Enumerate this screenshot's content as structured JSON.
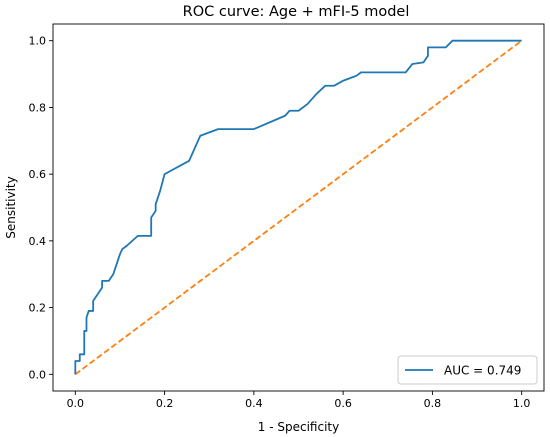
{
  "chart_data": {
    "type": "line",
    "title": "ROC curve: Age + mFI-5 model",
    "xlabel": "1 - Specificity",
    "ylabel": "Sensitivity",
    "xlim": [
      -0.05,
      1.05
    ],
    "ylim": [
      -0.05,
      1.05
    ],
    "xticks": [
      0.0,
      0.2,
      0.4,
      0.6,
      0.8,
      1.0
    ],
    "yticks": [
      0.0,
      0.2,
      0.4,
      0.6,
      0.8,
      1.0
    ],
    "xtick_labels": [
      "0.0",
      "0.2",
      "0.4",
      "0.6",
      "0.8",
      "1.0"
    ],
    "ytick_labels": [
      "0.0",
      "0.2",
      "0.4",
      "0.6",
      "0.8",
      "1.0"
    ],
    "grid": false,
    "legend_position": "lower right",
    "series": [
      {
        "name": "AUC = 0.749",
        "color": "#1f77b4",
        "style": "solid",
        "points": [
          [
            0.0,
            0.0
          ],
          [
            0.0,
            0.04
          ],
          [
            0.01,
            0.04
          ],
          [
            0.01,
            0.06
          ],
          [
            0.02,
            0.06
          ],
          [
            0.02,
            0.13
          ],
          [
            0.025,
            0.13
          ],
          [
            0.025,
            0.17
          ],
          [
            0.03,
            0.19
          ],
          [
            0.04,
            0.19
          ],
          [
            0.04,
            0.22
          ],
          [
            0.05,
            0.24
          ],
          [
            0.06,
            0.26
          ],
          [
            0.06,
            0.28
          ],
          [
            0.075,
            0.28
          ],
          [
            0.08,
            0.29
          ],
          [
            0.085,
            0.3
          ],
          [
            0.09,
            0.32
          ],
          [
            0.1,
            0.36
          ],
          [
            0.105,
            0.375
          ],
          [
            0.115,
            0.385
          ],
          [
            0.14,
            0.415
          ],
          [
            0.17,
            0.415
          ],
          [
            0.17,
            0.47
          ],
          [
            0.18,
            0.49
          ],
          [
            0.18,
            0.51
          ],
          [
            0.19,
            0.55
          ],
          [
            0.2,
            0.6
          ],
          [
            0.255,
            0.64
          ],
          [
            0.28,
            0.715
          ],
          [
            0.32,
            0.735
          ],
          [
            0.4,
            0.735
          ],
          [
            0.47,
            0.775
          ],
          [
            0.48,
            0.79
          ],
          [
            0.5,
            0.79
          ],
          [
            0.52,
            0.81
          ],
          [
            0.54,
            0.84
          ],
          [
            0.56,
            0.865
          ],
          [
            0.58,
            0.865
          ],
          [
            0.6,
            0.88
          ],
          [
            0.62,
            0.89
          ],
          [
            0.63,
            0.895
          ],
          [
            0.64,
            0.905
          ],
          [
            0.74,
            0.905
          ],
          [
            0.755,
            0.93
          ],
          [
            0.78,
            0.935
          ],
          [
            0.79,
            0.955
          ],
          [
            0.79,
            0.98
          ],
          [
            0.81,
            0.98
          ],
          [
            0.83,
            0.98
          ],
          [
            0.845,
            1.0
          ],
          [
            1.0,
            1.0
          ]
        ]
      },
      {
        "name": "",
        "color": "#ff7f0e",
        "style": "dashed",
        "points": [
          [
            0.0,
            0.0
          ],
          [
            1.0,
            1.0
          ]
        ]
      }
    ]
  }
}
